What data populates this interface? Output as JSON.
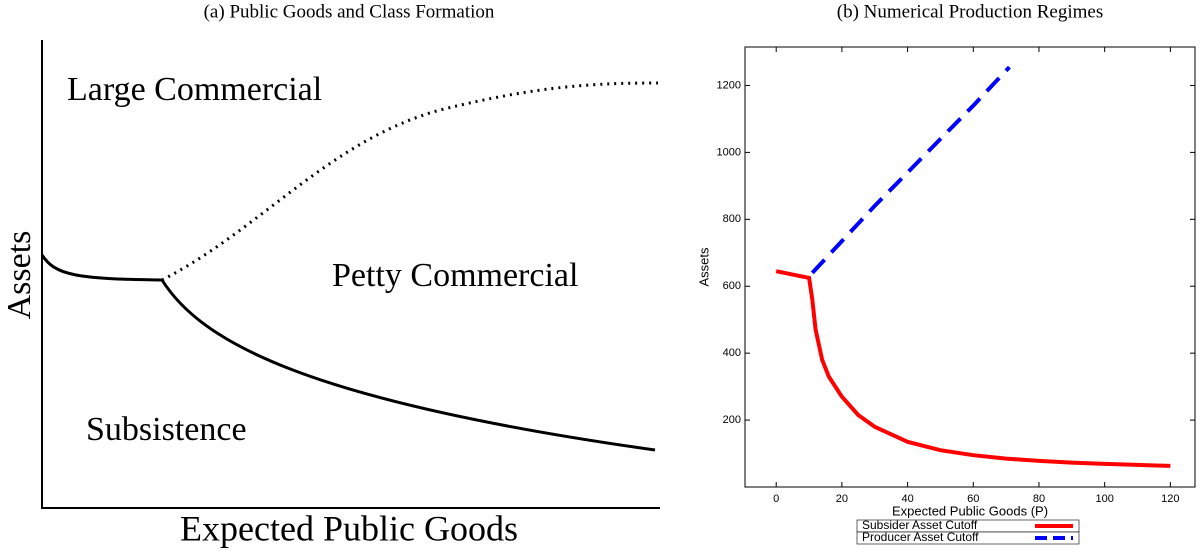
{
  "chart_data": [
    {
      "type": "diagram",
      "title": "(a) Public Goods and Class Formation",
      "xlabel": "Expected Public Goods",
      "ylabel": "Assets",
      "annotations": [
        "Large Commercial",
        "Petty Commercial",
        "Subsistence"
      ]
    },
    {
      "type": "line",
      "title": "(b) Numerical Production Regimes",
      "xlabel": "Expected Public Goods (P)",
      "ylabel": "Assets",
      "xlim": [
        -9.5,
        127.5
      ],
      "ylim": [
        0,
        1315
      ],
      "xticks": [
        0,
        20,
        40,
        60,
        80,
        100,
        120
      ],
      "yticks": [
        200,
        400,
        600,
        800,
        1000,
        1200
      ],
      "legend": "bottom",
      "series": [
        {
          "name": "Subsider Asset Cutoff",
          "color": "#ff0000",
          "dash": "solid",
          "x": [
            0,
            10,
            11,
            12,
            14,
            16,
            20,
            25,
            30,
            40,
            50,
            60,
            70,
            80,
            90,
            100,
            110,
            120
          ],
          "values": [
            645,
            625,
            560,
            470,
            380,
            330,
            270,
            215,
            180,
            135,
            110,
            95,
            85,
            78,
            73,
            69,
            66,
            63
          ]
        },
        {
          "name": "Producer Asset Cutoff",
          "color": "#0000ff",
          "dash": "dashed",
          "x": [
            11,
            20,
            30,
            40,
            50,
            60,
            71
          ],
          "values": [
            640,
            735,
            840,
            940,
            1040,
            1140,
            1255
          ]
        }
      ]
    }
  ]
}
